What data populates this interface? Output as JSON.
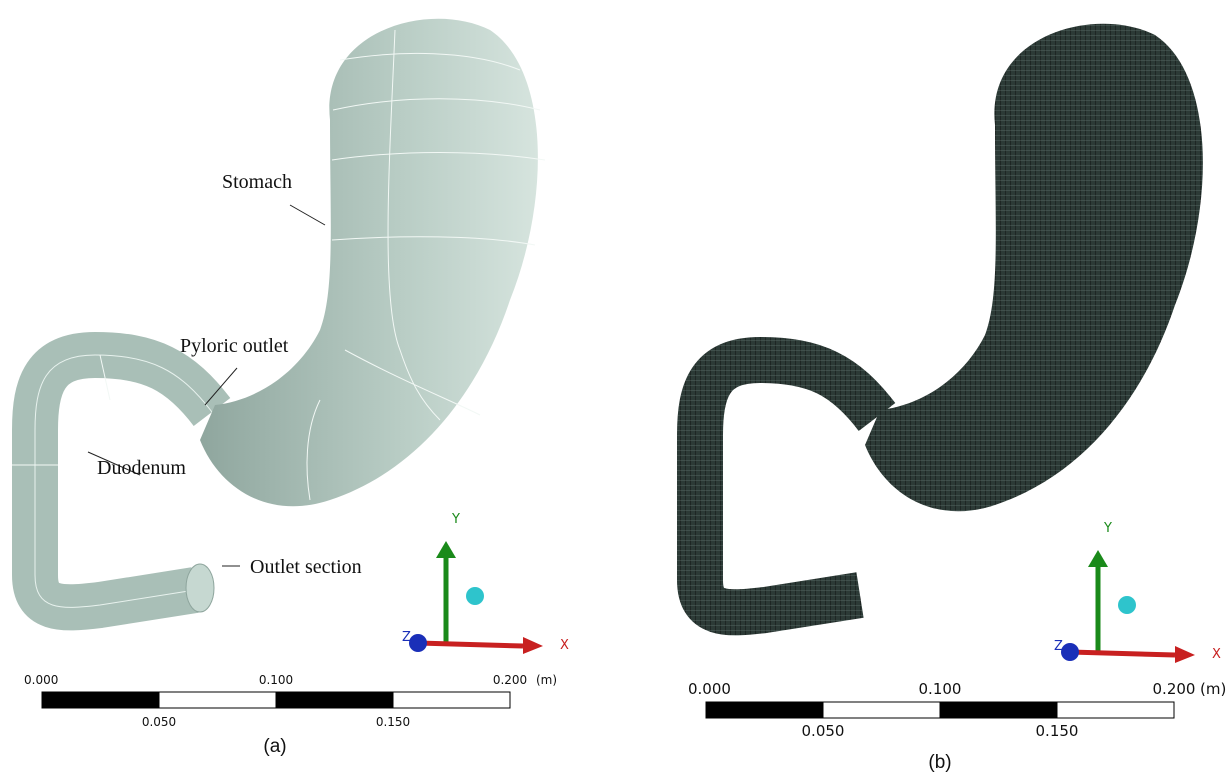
{
  "panels": [
    {
      "caption": "(a)",
      "labels": [
        "Stomach",
        "Pyloric outlet",
        "Duodenum",
        "Outlet section"
      ],
      "axes": {
        "x": "X",
        "y": "Y",
        "z": "Z"
      },
      "scale_bar": {
        "top": [
          "0.000",
          "0.100",
          "0.200"
        ],
        "unit": "(m)",
        "bottom": [
          "0.050",
          "0.150"
        ]
      }
    },
    {
      "caption": "(b)",
      "axes": {
        "x": "X",
        "y": "Y",
        "z": "Z"
      },
      "scale_bar": {
        "top": [
          "0.000",
          "0.100",
          "0.200"
        ],
        "unit": "(m)",
        "bottom": [
          "0.050",
          "0.150"
        ]
      }
    }
  ]
}
